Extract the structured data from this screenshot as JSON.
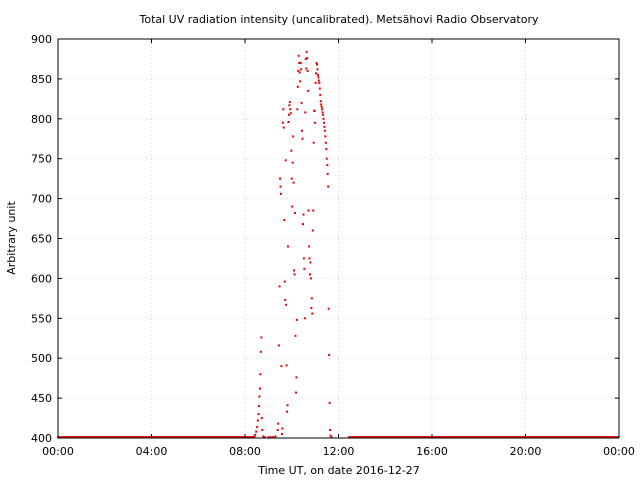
{
  "chart_data": {
    "type": "scatter",
    "title": "Total UV radiation intensity (uncalibrated). Metsähovi Radio Observatory",
    "xlabel": "Time UT, on date 2016-12-27",
    "ylabel": "Arbitrary unit",
    "x_unit": "hours UT",
    "xlim": [
      0,
      24
    ],
    "ylim": [
      400,
      900
    ],
    "x_ticks": [
      "00:00",
      "04:00",
      "08:00",
      "12:00",
      "16:00",
      "20:00",
      "00:00"
    ],
    "y_ticks": [
      "400",
      "450",
      "500",
      "550",
      "600",
      "650",
      "700",
      "750",
      "800",
      "850",
      "900"
    ],
    "grid": true,
    "legend": "none",
    "colors": {
      "series": "#e00000",
      "grid": "#c8c8c8",
      "axis": "#000000"
    },
    "baseline": {
      "from": 0.0,
      "to": 8.35,
      "value": 401
    },
    "baseline_end": {
      "from": 12.45,
      "to": 24.0,
      "value": 401
    },
    "series": [
      {
        "points": [
          [
            8.35,
            401
          ],
          [
            8.4,
            402
          ],
          [
            8.44,
            404
          ],
          [
            8.48,
            408
          ],
          [
            8.52,
            414
          ],
          [
            8.55,
            422
          ],
          [
            8.58,
            430
          ],
          [
            8.6,
            440
          ],
          [
            8.62,
            452
          ],
          [
            8.64,
            462
          ],
          [
            8.66,
            480
          ],
          [
            8.68,
            508
          ],
          [
            8.7,
            526
          ],
          [
            8.72,
            425
          ],
          [
            8.74,
            410
          ],
          [
            8.78,
            402
          ],
          [
            8.85,
            401
          ],
          [
            9.0,
            401
          ],
          [
            9.1,
            401
          ],
          [
            9.2,
            401
          ],
          [
            9.3,
            402
          ],
          [
            9.4,
            410
          ],
          [
            9.42,
            418
          ],
          [
            9.45,
            516
          ],
          [
            9.48,
            590
          ],
          [
            9.5,
            725
          ],
          [
            9.52,
            715
          ],
          [
            9.54,
            706
          ],
          [
            9.56,
            490
          ],
          [
            9.58,
            405
          ],
          [
            9.6,
            412
          ],
          [
            9.62,
            795
          ],
          [
            9.64,
            812
          ],
          [
            9.66,
            789
          ],
          [
            9.68,
            673
          ],
          [
            9.7,
            596
          ],
          [
            9.72,
            573
          ],
          [
            9.74,
            748
          ],
          [
            9.76,
            567
          ],
          [
            9.78,
            491
          ],
          [
            9.8,
            433
          ],
          [
            9.82,
            441
          ],
          [
            9.84,
            640
          ],
          [
            9.86,
            796
          ],
          [
            9.88,
            805
          ],
          [
            9.9,
            817
          ],
          [
            9.92,
            821
          ],
          [
            9.94,
            812
          ],
          [
            9.96,
            807
          ],
          [
            9.98,
            760
          ],
          [
            10.0,
            725
          ],
          [
            10.02,
            690
          ],
          [
            10.04,
            745
          ],
          [
            10.06,
            778
          ],
          [
            10.08,
            720
          ],
          [
            10.1,
            610
          ],
          [
            10.12,
            605
          ],
          [
            10.14,
            682
          ],
          [
            10.16,
            528
          ],
          [
            10.18,
            457
          ],
          [
            10.2,
            476
          ],
          [
            10.22,
            548
          ],
          [
            10.24,
            812
          ],
          [
            10.26,
            840
          ],
          [
            10.28,
            860
          ],
          [
            10.3,
            879
          ],
          [
            10.32,
            870
          ],
          [
            10.34,
            858
          ],
          [
            10.36,
            847
          ],
          [
            10.38,
            870
          ],
          [
            10.4,
            862
          ],
          [
            10.42,
            820
          ],
          [
            10.44,
            785
          ],
          [
            10.46,
            775
          ],
          [
            10.48,
            668
          ],
          [
            10.5,
            680
          ],
          [
            10.52,
            625
          ],
          [
            10.54,
            612
          ],
          [
            10.56,
            550
          ],
          [
            10.58,
            808
          ],
          [
            10.6,
            875
          ],
          [
            10.62,
            863
          ],
          [
            10.64,
            884
          ],
          [
            10.66,
            876
          ],
          [
            10.68,
            860
          ],
          [
            10.7,
            835
          ],
          [
            10.72,
            685
          ],
          [
            10.74,
            640
          ],
          [
            10.76,
            625
          ],
          [
            10.78,
            605
          ],
          [
            10.8,
            620
          ],
          [
            10.82,
            600
          ],
          [
            10.84,
            563
          ],
          [
            10.86,
            575
          ],
          [
            10.88,
            556
          ],
          [
            10.9,
            660
          ],
          [
            10.92,
            685
          ],
          [
            10.94,
            770
          ],
          [
            10.96,
            810
          ],
          [
            10.98,
            810
          ],
          [
            11.0,
            795
          ],
          [
            11.02,
            845
          ],
          [
            11.04,
            857
          ],
          [
            11.06,
            870
          ],
          [
            11.08,
            868
          ],
          [
            11.1,
            862
          ],
          [
            11.12,
            855
          ],
          [
            11.14,
            852
          ],
          [
            11.16,
            848
          ],
          [
            11.18,
            845
          ],
          [
            11.2,
            838
          ],
          [
            11.22,
            830
          ],
          [
            11.24,
            822
          ],
          [
            11.26,
            818
          ],
          [
            11.28,
            815
          ],
          [
            11.3,
            812
          ],
          [
            11.32,
            808
          ],
          [
            11.34,
            805
          ],
          [
            11.36,
            800
          ],
          [
            11.38,
            795
          ],
          [
            11.4,
            790
          ],
          [
            11.42,
            785
          ],
          [
            11.44,
            778
          ],
          [
            11.46,
            770
          ],
          [
            11.48,
            762
          ],
          [
            11.5,
            750
          ],
          [
            11.52,
            742
          ],
          [
            11.54,
            731
          ],
          [
            11.56,
            715
          ],
          [
            11.58,
            562
          ],
          [
            11.6,
            504
          ],
          [
            11.62,
            444
          ],
          [
            11.64,
            410
          ],
          [
            11.66,
            403
          ],
          [
            11.7,
            401
          ]
        ]
      }
    ]
  }
}
